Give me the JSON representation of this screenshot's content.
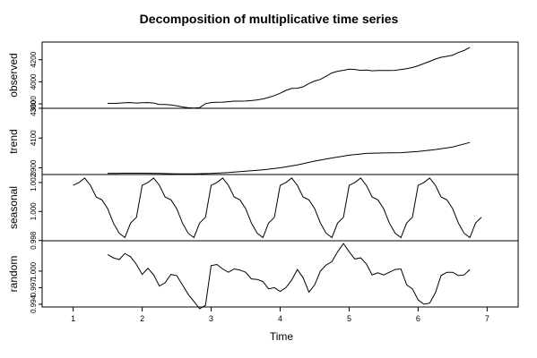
{
  "chart_data": {
    "type": "line",
    "title": "Decomposition of multiplicative time series",
    "xlabel": "Time",
    "xlim": [
      0.55,
      7.45
    ],
    "x_ticks": [
      1,
      2,
      3,
      4,
      5,
      6,
      7
    ],
    "x_tick_labels": [
      "1",
      "2",
      "3",
      "4",
      "5",
      "6",
      "7"
    ],
    "panels": [
      {
        "name": "observed",
        "ylabel": "observed",
        "ylim": [
          3760,
          4360
        ],
        "y_ticks": [
          3800,
          4000,
          4200
        ],
        "y_tick_labels": [
          "3800",
          "4000",
          "4200"
        ],
        "series": {
          "x": [
            1.5,
            1.583,
            1.667,
            1.75,
            1.833,
            1.917,
            2.0,
            2.083,
            2.167,
            2.25,
            2.333,
            2.417,
            2.5,
            2.583,
            2.667,
            2.75,
            2.833,
            2.917,
            3.0,
            3.083,
            3.167,
            3.25,
            3.333,
            3.417,
            3.5,
            3.583,
            3.667,
            3.75,
            3.833,
            3.917,
            4.0,
            4.083,
            4.167,
            4.25,
            4.333,
            4.417,
            4.5,
            4.583,
            4.667,
            4.75,
            4.833,
            4.917,
            5.0,
            5.083,
            5.167,
            5.25,
            5.333,
            5.417,
            5.5,
            5.583,
            5.667,
            5.75,
            5.833,
            5.917,
            6.0,
            6.083,
            6.167,
            6.25,
            6.333,
            6.417,
            6.5,
            6.583,
            6.667,
            6.75
          ],
          "values": [
            3805,
            3805,
            3807,
            3810,
            3812,
            3808,
            3810,
            3812,
            3808,
            3795,
            3794,
            3790,
            3782,
            3772,
            3765,
            3762,
            3766,
            3802,
            3812,
            3814,
            3816,
            3820,
            3825,
            3825,
            3826,
            3830,
            3836,
            3845,
            3858,
            3875,
            3896,
            3922,
            3940,
            3942,
            3955,
            3985,
            4007,
            4022,
            4050,
            4080,
            4096,
            4104,
            4115,
            4112,
            4104,
            4106,
            4100,
            4103,
            4103,
            4102,
            4104,
            4112,
            4118,
            4130,
            4145,
            4165,
            4185,
            4206,
            4222,
            4230,
            4242,
            4265,
            4284,
            4312
          ]
        }
      },
      {
        "name": "trend",
        "ylabel": "trend",
        "ylim": [
          3855,
          4300
        ],
        "y_ticks": [
          3900,
          4100,
          4300
        ],
        "y_tick_labels": [
          "3900",
          "4100",
          "4300"
        ],
        "series": {
          "x": [
            1.5,
            1.75,
            2.0,
            2.25,
            2.5,
            2.75,
            3.0,
            3.25,
            3.5,
            3.75,
            4.0,
            4.25,
            4.5,
            4.75,
            5.0,
            5.25,
            5.5,
            5.75,
            6.0,
            6.25,
            6.5,
            6.75
          ],
          "values": [
            3862,
            3864,
            3864,
            3862,
            3859,
            3859,
            3862,
            3868,
            3877,
            3887,
            3900,
            3920,
            3945,
            3966,
            3985,
            3997,
            4000,
            4002,
            4010,
            4023,
            4040,
            4070
          ]
        }
      },
      {
        "name": "seasonal",
        "ylabel": "seasonal",
        "ylim": [
          0.99798,
          1.00255
        ],
        "y_ticks": [
          0.998,
          1.0,
          1.002
        ],
        "y_tick_labels": [
          "0.998",
          "1.000",
          "1.002"
        ],
        "series": {
          "x": [
            1.0,
            1.083,
            1.167,
            1.25,
            1.333,
            1.417,
            1.5,
            1.583,
            1.667,
            1.75,
            1.833,
            1.917,
            2.0,
            2.083,
            2.167,
            2.25,
            2.333,
            2.417,
            2.5,
            2.583,
            2.667,
            2.75,
            2.833,
            2.917,
            3.0,
            3.083,
            3.167,
            3.25,
            3.333,
            3.417,
            3.5,
            3.583,
            3.667,
            3.75,
            3.833,
            3.917,
            4.0,
            4.083,
            4.167,
            4.25,
            4.333,
            4.417,
            4.5,
            4.583,
            4.667,
            4.75,
            4.833,
            4.917,
            5.0,
            5.083,
            5.167,
            5.25,
            5.333,
            5.417,
            5.5,
            5.583,
            5.667,
            5.75,
            5.833,
            5.917,
            6.0,
            6.083,
            6.167,
            6.25,
            6.333,
            6.417,
            6.5,
            6.583,
            6.667,
            6.75,
            6.833,
            6.917
          ],
          "values": [
            1.0018,
            1.002,
            1.0023,
            1.0018,
            1.001,
            1.0008,
            1.0002,
            0.9992,
            0.9985,
            0.9982,
            0.9992,
            0.9996,
            1.0018,
            1.002,
            1.0023,
            1.0018,
            1.001,
            1.0008,
            1.0002,
            0.9992,
            0.9985,
            0.9982,
            0.9992,
            0.9996,
            1.0018,
            1.002,
            1.0023,
            1.0018,
            1.001,
            1.0008,
            1.0002,
            0.9992,
            0.9985,
            0.9982,
            0.9992,
            0.9996,
            1.0018,
            1.002,
            1.0023,
            1.0018,
            1.001,
            1.0008,
            1.0002,
            0.9992,
            0.9985,
            0.9982,
            0.9992,
            0.9996,
            1.0018,
            1.002,
            1.0023,
            1.0018,
            1.001,
            1.0008,
            1.0002,
            0.9992,
            0.9985,
            0.9982,
            0.9992,
            0.9996,
            1.0018,
            1.002,
            1.0023,
            1.0018,
            1.001,
            1.0008,
            1.0002,
            0.9992,
            0.9985,
            0.9982,
            0.9992,
            0.9996
          ]
        }
      },
      {
        "name": "random",
        "ylabel": "random",
        "ylim": [
          0.9935,
          1.0055
        ],
        "y_ticks": [
          0.994,
          0.997,
          1.0
        ],
        "y_tick_labels": [
          "0.994",
          "0.997",
          "1.000"
        ],
        "series": {
          "x": [
            1.5,
            1.583,
            1.667,
            1.75,
            1.833,
            1.917,
            2.0,
            2.083,
            2.167,
            2.25,
            2.333,
            2.417,
            2.5,
            2.583,
            2.667,
            2.75,
            2.833,
            2.917,
            3.0,
            3.083,
            3.167,
            3.25,
            3.333,
            3.417,
            3.5,
            3.583,
            3.667,
            3.75,
            3.833,
            3.917,
            4.0,
            4.083,
            4.167,
            4.25,
            4.333,
            4.417,
            4.5,
            4.583,
            4.667,
            4.75,
            4.833,
            4.917,
            5.0,
            5.083,
            5.167,
            5.25,
            5.333,
            5.417,
            5.5,
            5.583,
            5.667,
            5.75,
            5.833,
            5.917,
            6.0,
            6.083,
            6.167,
            6.25,
            6.333,
            6.417,
            6.5,
            6.583,
            6.667,
            6.75
          ],
          "values": [
            1.003,
            1.0024,
            1.0021,
            1.0032,
            1.0026,
            1.0012,
            0.9994,
            1.0005,
            0.9993,
            0.9973,
            0.9979,
            0.9994,
            0.9992,
            0.9975,
            0.9958,
            0.9945,
            0.9932,
            0.9938,
            1.001,
            1.0012,
            1.0004,
            0.9998,
            1.0004,
            1.0002,
            0.9998,
            0.9986,
            0.9985,
            0.9981,
            0.9968,
            0.997,
            0.9963,
            0.997,
            0.9984,
            1.0003,
            0.9988,
            0.9962,
            0.9975,
            1.0,
            1.0011,
            1.0017,
            1.0035,
            1.005,
            1.0035,
            1.0022,
            1.0024,
            1.0013,
            0.9993,
            0.9997,
            0.9993,
            0.9998,
            1.0003,
            1.0004,
            0.9975,
            0.9968,
            0.9948,
            0.994,
            0.9942,
            0.9961,
            0.9992,
            0.9998,
            0.9998,
            0.9992,
            0.9993,
            1.0003
          ]
        }
      }
    ]
  }
}
